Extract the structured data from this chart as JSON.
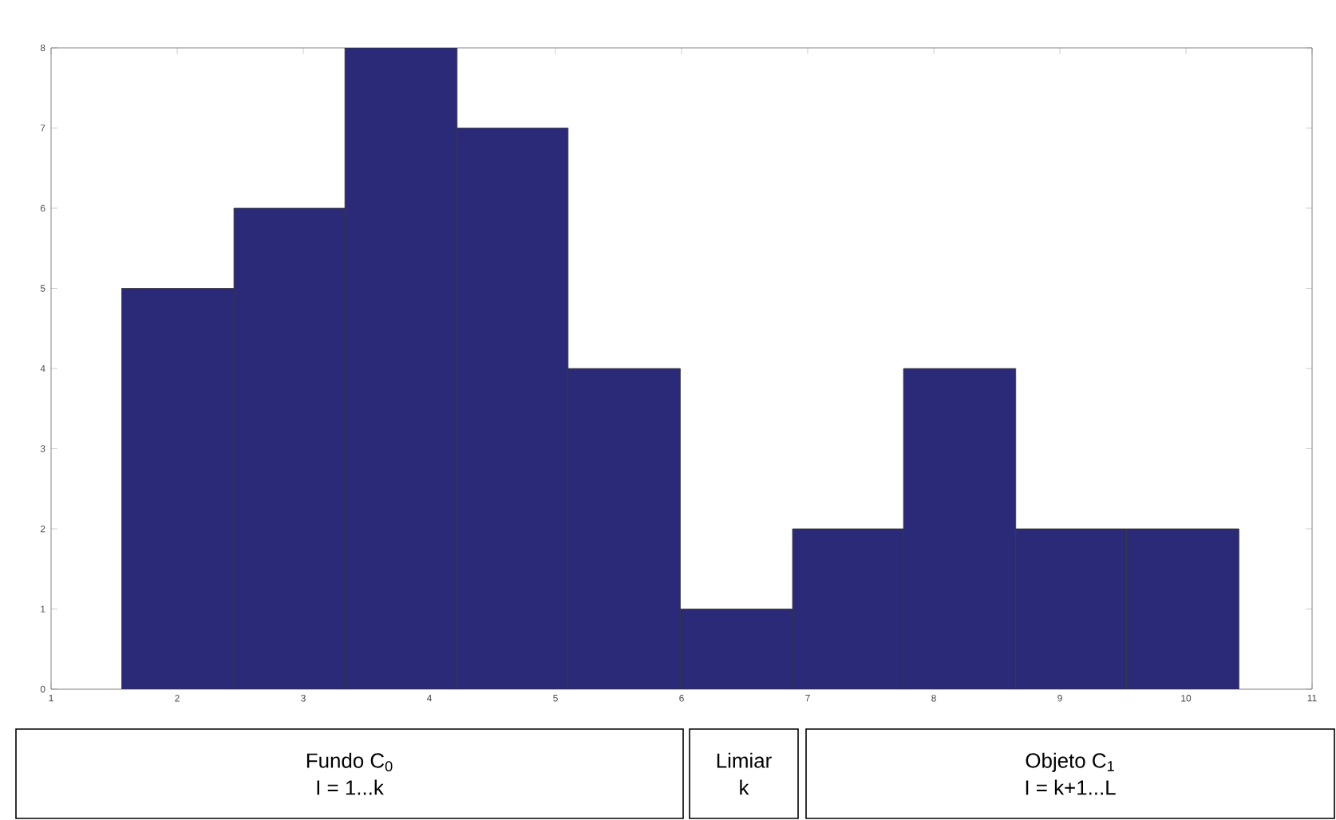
{
  "chart_data": {
    "type": "histogram",
    "color": "#2b2a78",
    "bins": [
      1.56,
      2.45,
      3.33,
      4.22,
      5.1,
      5.99,
      6.88,
      7.76,
      8.65,
      9.53,
      10.42
    ],
    "values": [
      5,
      6,
      8,
      7,
      4,
      1,
      2,
      4,
      2,
      2
    ],
    "xlim": [
      1,
      11
    ],
    "xticks": [
      1,
      2,
      3,
      4,
      5,
      6,
      7,
      8,
      9,
      10,
      11
    ],
    "ylim": [
      0,
      8
    ],
    "yticks": [
      0,
      1,
      2,
      3,
      4,
      5,
      6,
      7,
      8
    ],
    "grid": false,
    "annotations": [
      "Fundo C$_{0}$",
      "I = 1...k",
      "Limiar",
      "k",
      "Objeto C$_{1}$",
      "I = k+1...L"
    ]
  }
}
